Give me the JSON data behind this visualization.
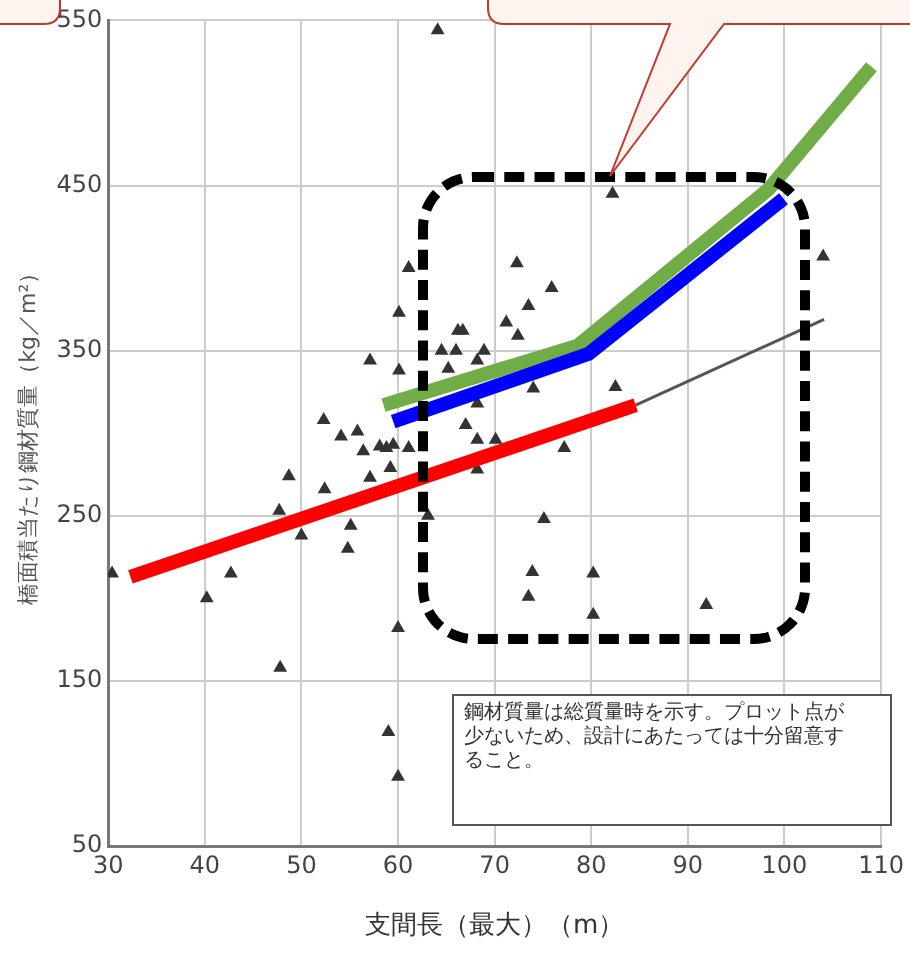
{
  "chart_data": {
    "type": "scatter",
    "xlabel": "支間長（最大）（m）",
    "ylabel": "橋面積当たり鋼材質量（kg／m²）",
    "xlim": [
      30,
      110
    ],
    "xticks": [
      30,
      40,
      50,
      60,
      70,
      80,
      90,
      100,
      110
    ],
    "ylim": [
      50,
      550
    ],
    "yticks": [
      50,
      150,
      250,
      350,
      450,
      550
    ],
    "grid": true,
    "legend": false,
    "marker": "triangle",
    "annotations": [
      "鋼材質量は総質量時を示す。プロット点が少ないため、設計にあたっては十分留意すること。"
    ],
    "series": [
      {
        "color": "#333333",
        "x": [
          30.4,
          40.2,
          42.7,
          47.8,
          48.7,
          47.7,
          50,
          52.3,
          52.4,
          54.1,
          55.8,
          56.4,
          57.1,
          55.1,
          54.8,
          57.1,
          58.1,
          58.8,
          61.1,
          59.2,
          63.1,
          61.1,
          60.1,
          60.1,
          82.2,
          72.3,
          75.9,
          73.5,
          66.2,
          66.7,
          71.2,
          72.4,
          64.5,
          66,
          68.9,
          65.2,
          68.2,
          74,
          82.5,
          68.2,
          67,
          68.2,
          70.1,
          77.2,
          68.2,
          75.1,
          73.9,
          80.2,
          73.5,
          80.2,
          91.9,
          104,
          59.5,
          60,
          59,
          60,
          64.1
        ],
        "values": [
          215,
          200,
          215,
          158,
          274,
          253,
          238,
          308,
          266,
          298,
          301,
          289,
          273,
          244,
          230,
          344,
          292,
          291,
          291,
          279,
          250,
          400,
          373,
          338,
          445,
          403,
          388,
          377,
          362,
          362,
          367,
          359,
          350,
          350,
          350,
          339,
          344,
          327,
          328,
          318,
          305,
          296,
          296,
          291,
          278,
          248,
          216,
          215,
          201,
          190,
          196,
          407,
          293,
          182,
          119,
          92,
          544
        ]
      },
      {
        "type": "line",
        "color": "#555555",
        "marker": "none",
        "x": [
          84.6,
          104.1
        ],
        "values": [
          317,
          369
        ]
      },
      {
        "type": "line",
        "color": "#ff0000",
        "marker": "none",
        "x": [
          32.3,
          84.6
        ],
        "values": [
          213,
          317
        ]
      },
      {
        "type": "line",
        "color": "#70ad47",
        "marker": "none",
        "x": [
          58.5,
          78.6,
          98.4,
          109
        ],
        "values": [
          317,
          353,
          448,
          522
        ]
      },
      {
        "type": "line",
        "color": "#0000ff",
        "marker": "none",
        "x": [
          59.5,
          79.7,
          99.9
        ],
        "values": [
          307,
          348,
          442
        ]
      }
    ]
  }
}
